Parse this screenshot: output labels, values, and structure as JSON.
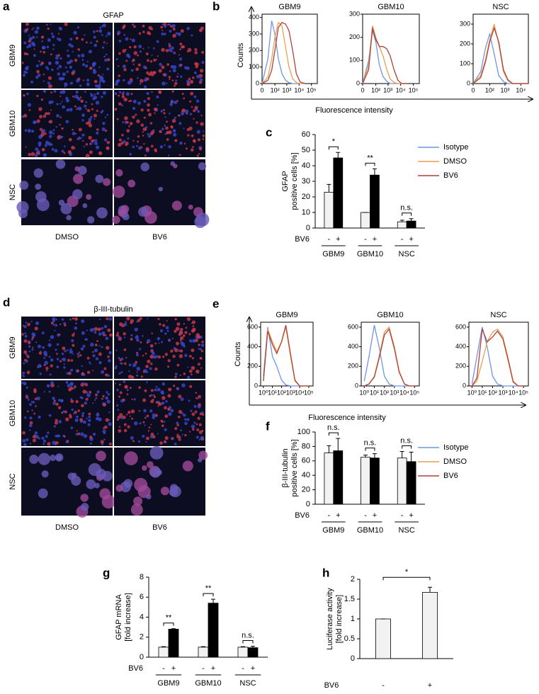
{
  "chart_data": [
    {
      "type": "image-grid",
      "label": "a",
      "title": "GFAP",
      "rows": [
        "GBM9",
        "GBM10",
        "NSC"
      ],
      "columns": [
        "DMSO",
        "BV6"
      ]
    },
    {
      "type": "histogram",
      "label": "b",
      "ylabel": "Counts",
      "xlabel": "Fluorescence intensity",
      "xscale": "biexponential",
      "series": [
        {
          "name": "Isotype",
          "color": "#6f95e0"
        },
        {
          "name": "DMSO",
          "color": "#e8a050"
        },
        {
          "name": "BV6",
          "color": "#b0403a"
        }
      ],
      "panels": [
        {
          "title": "GBM9",
          "x": [
            0,
            20,
            50,
            100,
            200,
            400,
            800,
            1500,
            3000,
            6000,
            12000,
            30000
          ],
          "values": [
            [
              0,
              150,
              380,
              300,
              150,
              60,
              20,
              5,
              0,
              0,
              0,
              0
            ],
            [
              0,
              40,
              150,
              280,
              370,
              350,
              220,
              100,
              30,
              5,
              0,
              0
            ],
            [
              0,
              20,
              80,
              200,
              340,
              370,
              360,
              320,
              200,
              60,
              10,
              0
            ]
          ],
          "xlim": [
            0,
            300000
          ],
          "xticks": [
            0,
            {
              "value": 100,
              "label": "10²"
            },
            {
              "value": 1000,
              "label": "10³"
            },
            {
              "value": 10000,
              "label": "10⁴"
            },
            {
              "value": 100000,
              "label": "10⁵"
            }
          ],
          "ylim": [
            0,
            420
          ],
          "yticks": [
            0,
            100,
            200,
            300,
            400
          ]
        },
        {
          "title": "GBM10",
          "x": [
            0,
            20,
            50,
            100,
            200,
            400,
            800,
            1500,
            3000,
            6000,
            12000,
            30000
          ],
          "values": [
            [
              0,
              100,
              230,
              180,
              80,
              30,
              10,
              0,
              0,
              0,
              0,
              0
            ],
            [
              0,
              80,
              250,
              200,
              160,
              120,
              60,
              20,
              5,
              0,
              0,
              0
            ],
            [
              0,
              60,
              240,
              190,
              160,
              160,
              150,
              120,
              60,
              15,
              0,
              0
            ]
          ],
          "xlim": [
            0,
            300000
          ],
          "xticks": [
            0,
            {
              "value": 100,
              "label": "10²"
            },
            {
              "value": 1000,
              "label": "10³"
            },
            {
              "value": 10000,
              "label": "10⁴"
            },
            {
              "value": 100000,
              "label": "10⁵"
            }
          ],
          "ylim": [
            0,
            300
          ],
          "yticks": [
            0,
            100,
            200,
            300
          ]
        },
        {
          "title": "NSC",
          "x": [
            0,
            20,
            50,
            100,
            200,
            400,
            800,
            1500,
            3000,
            6000,
            12000,
            30000
          ],
          "values": [
            [
              0,
              60,
              180,
              250,
              150,
              40,
              10,
              0,
              0,
              0,
              0,
              0
            ],
            [
              0,
              40,
              120,
              220,
              300,
              200,
              60,
              15,
              0,
              0,
              0,
              0
            ],
            [
              0,
              30,
              110,
              210,
              280,
              210,
              70,
              20,
              0,
              0,
              0,
              0
            ]
          ],
          "xlim": [
            0,
            30000
          ],
          "xticks": [
            0,
            {
              "value": 100,
              "label": "10²"
            },
            {
              "value": 1000,
              "label": "10³"
            },
            {
              "value": 10000,
              "label": "10⁴"
            }
          ],
          "ylim": [
            0,
            350
          ],
          "yticks": [
            0,
            100,
            200,
            300
          ]
        }
      ]
    },
    {
      "type": "bar",
      "label": "c",
      "ylabel": [
        "GFAP",
        "positive cells [%]"
      ],
      "treatment": "BV6",
      "treatment_levels": [
        "-",
        "+"
      ],
      "categories": [
        "GBM9",
        "GBM10",
        "NSC"
      ],
      "series": [
        {
          "color": "#f2f2f2",
          "values": [
            23,
            10,
            4
          ],
          "errors": [
            5,
            0,
            1
          ]
        },
        {
          "color": "#000000",
          "values": [
            45,
            34,
            4.5
          ],
          "errors": [
            3.5,
            4,
            1.5
          ]
        }
      ],
      "significance": [
        "*",
        "**",
        "n.s."
      ],
      "ylim": [
        0,
        60
      ],
      "yticks": [
        0,
        10,
        20,
        30,
        40,
        50,
        60
      ]
    },
    {
      "type": "image-grid",
      "label": "d",
      "title": "β-III-tubulin",
      "rows": [
        "GBM9",
        "GBM10",
        "NSC"
      ],
      "columns": [
        "DMSO",
        "BV6"
      ]
    },
    {
      "type": "histogram",
      "label": "e",
      "ylabel": "Counts",
      "xlabel": "Fluorescence intensity",
      "xscale": "log",
      "series": [
        {
          "name": "Isotype",
          "color": "#6f95e0"
        },
        {
          "name": "DMSO",
          "color": "#e8a050"
        },
        {
          "name": "BV6",
          "color": "#b0403a"
        }
      ],
      "panels": [
        {
          "title": "GBM9",
          "x": [
            1,
            3,
            10,
            30,
            100,
            300,
            1000,
            3000,
            10000,
            30000,
            100000
          ],
          "values": [
            [
              100,
              600,
              300,
              200,
              60,
              10,
              0,
              0,
              0,
              0,
              0
            ],
            [
              50,
              580,
              450,
              350,
              450,
              600,
              300,
              50,
              0,
              0,
              0
            ],
            [
              50,
              560,
              420,
              330,
              450,
              620,
              320,
              60,
              0,
              0,
              0
            ]
          ],
          "xlim": [
            0.5,
            300000
          ],
          "xticks": [
            {
              "value": 1,
              "label": "10⁰"
            },
            {
              "value": 10,
              "label": "10¹"
            },
            {
              "value": 100,
              "label": "10²"
            },
            {
              "value": 1000,
              "label": "10³"
            },
            {
              "value": 10000,
              "label": "10⁴"
            },
            {
              "value": 100000,
              "label": "10⁵"
            }
          ],
          "ylim": [
            0,
            650
          ],
          "yticks": [
            0,
            200,
            400,
            600
          ]
        },
        {
          "title": "GBM10",
          "x": [
            1,
            3,
            10,
            30,
            100,
            300,
            1000,
            3000,
            10000,
            30000,
            100000
          ],
          "values": [
            [
              50,
              300,
              620,
              400,
              100,
              20,
              0,
              0,
              0,
              0,
              0
            ],
            [
              0,
              20,
              100,
              300,
              550,
              600,
              400,
              150,
              20,
              0,
              0
            ],
            [
              0,
              20,
              90,
              280,
              520,
              580,
              380,
              140,
              20,
              0,
              0
            ]
          ],
          "xlim": [
            0.5,
            300000
          ],
          "xticks": [
            {
              "value": 1,
              "label": "10⁰"
            },
            {
              "value": 10,
              "label": "10¹"
            },
            {
              "value": 100,
              "label": "10²"
            },
            {
              "value": 1000,
              "label": "10³"
            },
            {
              "value": 10000,
              "label": "10⁴"
            },
            {
              "value": 100000,
              "label": "10⁵"
            }
          ],
          "ylim": [
            0,
            650
          ],
          "yticks": [
            0,
            200,
            400,
            600
          ]
        },
        {
          "title": "NSC",
          "x": [
            1,
            3,
            10,
            30,
            100,
            300,
            1000,
            3000,
            10000,
            30000,
            100000
          ],
          "values": [
            [
              20,
              300,
              600,
              400,
              100,
              20,
              0,
              0,
              0,
              0,
              0
            ],
            [
              0,
              50,
              250,
              450,
              550,
              580,
              500,
              300,
              50,
              0,
              0
            ],
            [
              0,
              80,
              580,
              450,
              500,
              560,
              480,
              280,
              40,
              0,
              0
            ]
          ],
          "xlim": [
            0.5,
            300000
          ],
          "xticks": [
            {
              "value": 1,
              "label": "10⁰"
            },
            {
              "value": 10,
              "label": "10¹"
            },
            {
              "value": 100,
              "label": "10²"
            },
            {
              "value": 1000,
              "label": "10³"
            },
            {
              "value": 10000,
              "label": "10⁴"
            },
            {
              "value": 100000,
              "label": "10⁵"
            }
          ],
          "ylim": [
            0,
            650
          ],
          "yticks": [
            0,
            200,
            400,
            600
          ]
        }
      ]
    },
    {
      "type": "bar",
      "label": "f",
      "ylabel": [
        "β-III-tubulin",
        "positive cells [%]"
      ],
      "treatment": "BV6",
      "treatment_levels": [
        "-",
        "+"
      ],
      "categories": [
        "GBM9",
        "GBM10",
        "NSC"
      ],
      "series": [
        {
          "color": "#f2f2f2",
          "values": [
            71,
            65,
            64
          ],
          "errors": [
            10,
            3,
            9
          ]
        },
        {
          "color": "#000000",
          "values": [
            74,
            64,
            59
          ],
          "errors": [
            17,
            6,
            13
          ]
        }
      ],
      "significance": [
        "n.s.",
        "n.s.",
        "n.s."
      ],
      "ylim": [
        0,
        100
      ],
      "yticks": [
        0,
        20,
        40,
        60,
        80,
        100
      ]
    },
    {
      "type": "bar",
      "label": "g",
      "ylabel": [
        "GFAP mRNA",
        "[fold increase]"
      ],
      "treatment": "BV6",
      "treatment_levels": [
        "-",
        "+"
      ],
      "categories": [
        "GBM9",
        "GBM10",
        "NSC"
      ],
      "series": [
        {
          "color": "#f2f2f2",
          "values": [
            1,
            1,
            1
          ],
          "errors": [
            0.05,
            0.05,
            0.05
          ]
        },
        {
          "color": "#000000",
          "values": [
            2.8,
            5.4,
            0.95
          ],
          "errors": [
            0.05,
            0.4,
            0.15
          ]
        }
      ],
      "significance": [
        "**",
        "**",
        "n.s."
      ],
      "ylim": [
        0,
        8
      ],
      "yticks": [
        0,
        2,
        4,
        6,
        8
      ]
    },
    {
      "type": "bar",
      "label": "h",
      "ylabel": [
        "Luciferase activity",
        "[fold increase]"
      ],
      "treatment": "BV6",
      "categories": [
        "-",
        "+"
      ],
      "series": [
        {
          "color": "#f2f2f2",
          "values": [
            1,
            1.67
          ],
          "errors": [
            0,
            0.13
          ]
        }
      ],
      "significance": [
        "*"
      ],
      "ylim": [
        0,
        2
      ],
      "yticks": [
        0,
        0.5,
        1,
        1.5,
        2
      ]
    }
  ]
}
